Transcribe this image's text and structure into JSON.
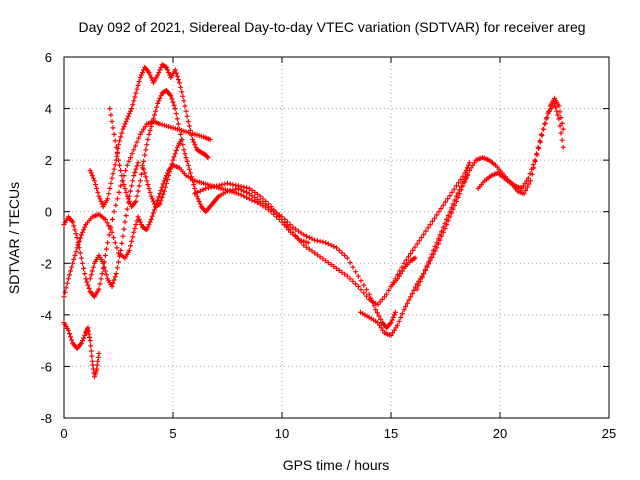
{
  "chart_data": {
    "type": "scatter",
    "title": "Day 092 of 2021, Sidereal Day-to-day VTEC variation (SDTVAR) for receiver areg",
    "xlabel": "GPS time / hours",
    "ylabel": "SDTVAR / TECUs",
    "xlim": [
      0,
      25
    ],
    "ylim": [
      -8,
      6
    ],
    "xticks": [
      "0",
      "5",
      "10",
      "15",
      "20",
      "25"
    ],
    "yticks": [
      "-8",
      "-6",
      "-4",
      "-2",
      "0",
      "2",
      "4",
      "6"
    ],
    "grid": true,
    "marker": "+",
    "series": [
      {
        "name": "SDTVAR",
        "color": "#ff0000",
        "tracks": [
          [
            [
              0.0,
              -0.5
            ],
            [
              0.2,
              -0.2
            ],
            [
              0.4,
              -0.4
            ],
            [
              0.6,
              -1.0
            ],
            [
              0.8,
              -1.8
            ],
            [
              1.0,
              -2.6
            ],
            [
              1.2,
              -3.1
            ],
            [
              1.4,
              -3.3
            ],
            [
              1.6,
              -3.0
            ],
            [
              1.8,
              -2.2
            ],
            [
              2.0,
              -1.2
            ],
            [
              2.3,
              0.0
            ],
            [
              2.6,
              1.0
            ],
            [
              2.9,
              1.8
            ],
            [
              3.2,
              2.4
            ],
            [
              3.5,
              3.0
            ],
            [
              3.8,
              3.4
            ],
            [
              4.1,
              3.5
            ],
            [
              4.4,
              3.4
            ],
            [
              4.8,
              3.3
            ],
            [
              5.2,
              3.2
            ],
            [
              5.6,
              3.1
            ],
            [
              6.0,
              3.0
            ],
            [
              6.4,
              2.9
            ],
            [
              6.7,
              2.8
            ]
          ],
          [
            [
              0.0,
              -3.3
            ],
            [
              0.2,
              -2.6
            ],
            [
              0.4,
              -2.0
            ],
            [
              0.6,
              -1.4
            ],
            [
              0.8,
              -0.9
            ],
            [
              1.0,
              -0.5
            ],
            [
              1.3,
              -0.2
            ],
            [
              1.6,
              -0.1
            ],
            [
              1.9,
              -0.3
            ],
            [
              2.2,
              -0.8
            ],
            [
              2.5,
              -1.6
            ],
            [
              2.8,
              -1.8
            ],
            [
              3.0,
              -1.5
            ],
            [
              3.2,
              -0.8
            ],
            [
              3.4,
              -0.2
            ],
            [
              3.6,
              -0.6
            ],
            [
              3.8,
              -0.7
            ],
            [
              4.0,
              -0.3
            ],
            [
              4.2,
              0.2
            ],
            [
              4.4,
              0.7
            ],
            [
              4.6,
              1.2
            ],
            [
              4.8,
              1.6
            ],
            [
              5.0,
              1.8
            ],
            [
              5.3,
              1.7
            ],
            [
              5.6,
              1.4
            ],
            [
              6.0,
              1.2
            ],
            [
              6.4,
              1.1
            ],
            [
              6.8,
              1.0
            ],
            [
              7.2,
              0.9
            ],
            [
              7.6,
              0.8
            ],
            [
              8.0,
              0.7
            ],
            [
              8.5,
              0.5
            ],
            [
              9.0,
              0.3
            ],
            [
              9.5,
              0.0
            ],
            [
              10.0,
              -0.4
            ],
            [
              10.4,
              -0.8
            ],
            [
              10.8,
              -1.1
            ],
            [
              11.2,
              -1.2
            ]
          ],
          [
            [
              0.0,
              -4.3
            ],
            [
              0.2,
              -4.6
            ],
            [
              0.4,
              -5.1
            ],
            [
              0.6,
              -5.3
            ],
            [
              0.8,
              -5.1
            ],
            [
              1.0,
              -4.7
            ],
            [
              1.1,
              -4.5
            ],
            [
              1.2,
              -5.0
            ],
            [
              1.3,
              -5.8
            ],
            [
              1.4,
              -6.4
            ],
            [
              1.5,
              -6.1
            ],
            [
              1.6,
              -5.5
            ]
          ],
          [
            [
              1.2,
              1.6
            ],
            [
              1.4,
              1.2
            ],
            [
              1.6,
              0.6
            ],
            [
              1.8,
              0.2
            ],
            [
              2.0,
              0.5
            ],
            [
              2.2,
              1.3
            ],
            [
              2.4,
              2.0
            ],
            [
              2.5,
              2.6
            ],
            [
              2.7,
              3.2
            ],
            [
              2.9,
              3.6
            ],
            [
              3.1,
              4.0
            ],
            [
              3.3,
              4.6
            ],
            [
              3.5,
              5.2
            ],
            [
              3.7,
              5.6
            ],
            [
              3.9,
              5.4
            ],
            [
              4.1,
              5.0
            ],
            [
              4.3,
              5.3
            ],
            [
              4.5,
              5.7
            ],
            [
              4.7,
              5.6
            ],
            [
              4.9,
              5.2
            ],
            [
              5.1,
              5.5
            ],
            [
              5.3,
              5.0
            ],
            [
              5.5,
              4.3
            ],
            [
              5.7,
              3.5
            ],
            [
              5.9,
              2.8
            ],
            [
              6.1,
              2.4
            ],
            [
              6.3,
              2.3
            ],
            [
              6.5,
              2.2
            ],
            [
              6.6,
              2.1
            ]
          ],
          [
            [
              2.1,
              4.0
            ],
            [
              2.3,
              3.0
            ],
            [
              2.5,
              2.0
            ],
            [
              2.7,
              1.2
            ],
            [
              2.9,
              0.6
            ],
            [
              3.1,
              0.2
            ],
            [
              3.3,
              0.4
            ],
            [
              3.5,
              1.2
            ],
            [
              3.7,
              2.2
            ],
            [
              3.9,
              3.0
            ],
            [
              4.1,
              3.6
            ],
            [
              4.3,
              4.2
            ],
            [
              4.5,
              4.6
            ],
            [
              4.7,
              4.7
            ],
            [
              4.9,
              4.5
            ],
            [
              5.1,
              4.0
            ],
            [
              5.3,
              3.2
            ],
            [
              5.5,
              2.4
            ],
            [
              5.7,
              1.8
            ],
            [
              5.9,
              1.2
            ],
            [
              6.1,
              0.6
            ],
            [
              6.3,
              0.2
            ],
            [
              6.5,
              0.0
            ],
            [
              6.7,
              0.2
            ],
            [
              6.9,
              0.4
            ],
            [
              7.1,
              0.6
            ],
            [
              7.5,
              0.8
            ],
            [
              8.0,
              0.9
            ],
            [
              8.5,
              0.7
            ],
            [
              9.0,
              0.4
            ],
            [
              9.5,
              0.1
            ],
            [
              10.0,
              -0.2
            ],
            [
              10.5,
              -0.6
            ],
            [
              11.0,
              -0.9
            ],
            [
              11.5,
              -1.1
            ],
            [
              12.0,
              -1.2
            ],
            [
              12.5,
              -1.4
            ],
            [
              13.0,
              -1.8
            ],
            [
              13.5,
              -2.5
            ],
            [
              14.0,
              -3.2
            ],
            [
              14.3,
              -3.8
            ],
            [
              14.6,
              -4.3
            ],
            [
              14.8,
              -4.5
            ],
            [
              15.0,
              -4.3
            ],
            [
              15.2,
              -3.9
            ]
          ],
          [
            [
              3.6,
              1.8
            ],
            [
              3.8,
              1.2
            ],
            [
              4.0,
              0.6
            ],
            [
              4.2,
              0.2
            ],
            [
              4.4,
              0.3
            ],
            [
              4.6,
              0.8
            ],
            [
              4.8,
              1.4
            ],
            [
              5.0,
              2.0
            ],
            [
              5.2,
              2.5
            ],
            [
              5.4,
              2.8
            ]
          ],
          [
            [
              6.0,
              0.7
            ],
            [
              6.5,
              0.9
            ],
            [
              7.0,
              1.0
            ],
            [
              7.5,
              1.1
            ],
            [
              8.0,
              1.0
            ],
            [
              8.5,
              0.9
            ],
            [
              9.0,
              0.6
            ],
            [
              9.5,
              0.2
            ],
            [
              10.0,
              -0.3
            ],
            [
              10.5,
              -0.8
            ],
            [
              11.0,
              -1.3
            ],
            [
              11.5,
              -1.6
            ],
            [
              12.0,
              -1.9
            ],
            [
              12.5,
              -2.2
            ],
            [
              13.0,
              -2.5
            ],
            [
              13.5,
              -2.9
            ],
            [
              14.0,
              -3.4
            ],
            [
              14.4,
              -3.6
            ],
            [
              14.8,
              -3.2
            ],
            [
              15.2,
              -2.6
            ],
            [
              15.6,
              -2.0
            ],
            [
              16.0,
              -1.5
            ],
            [
              16.4,
              -1.0
            ],
            [
              16.8,
              -0.5
            ],
            [
              17.2,
              0.0
            ],
            [
              17.6,
              0.5
            ],
            [
              18.0,
              1.0
            ],
            [
              18.4,
              1.5
            ],
            [
              18.6,
              1.9
            ]
          ],
          [
            [
              13.6,
              -3.9
            ],
            [
              14.0,
              -4.1
            ],
            [
              14.4,
              -4.3
            ],
            [
              14.7,
              -4.7
            ],
            [
              15.0,
              -4.8
            ],
            [
              15.3,
              -4.4
            ],
            [
              15.6,
              -3.8
            ],
            [
              15.9,
              -3.3
            ],
            [
              16.2,
              -2.8
            ],
            [
              16.5,
              -2.4
            ],
            [
              16.8,
              -1.9
            ],
            [
              17.1,
              -1.4
            ],
            [
              17.4,
              -0.8
            ],
            [
              17.7,
              -0.2
            ],
            [
              18.0,
              0.4
            ],
            [
              18.3,
              1.0
            ],
            [
              18.6,
              1.6
            ],
            [
              18.9,
              2.0
            ],
            [
              19.2,
              2.1
            ],
            [
              19.5,
              2.0
            ],
            [
              19.8,
              1.8
            ],
            [
              20.1,
              1.5
            ],
            [
              20.4,
              1.2
            ],
            [
              20.7,
              1.0
            ],
            [
              21.0,
              0.9
            ],
            [
              21.3,
              1.3
            ],
            [
              21.6,
              2.0
            ],
            [
              21.9,
              3.0
            ],
            [
              22.2,
              3.8
            ],
            [
              22.5,
              4.2
            ],
            [
              22.7,
              3.6
            ],
            [
              22.9,
              2.5
            ]
          ],
          [
            [
              15.0,
              -2.9
            ],
            [
              15.3,
              -2.6
            ],
            [
              15.6,
              -2.2
            ],
            [
              15.9,
              -1.9
            ],
            [
              16.1,
              -1.8
            ]
          ],
          [
            [
              16.2,
              -3.0
            ],
            [
              16.5,
              -2.4
            ],
            [
              16.8,
              -1.8
            ],
            [
              17.1,
              -1.2
            ],
            [
              17.4,
              -0.6
            ],
            [
              17.7,
              0.0
            ],
            [
              18.0,
              0.6
            ],
            [
              18.3,
              1.1
            ],
            [
              18.5,
              1.4
            ]
          ],
          [
            [
              19.0,
              0.9
            ],
            [
              19.3,
              1.2
            ],
            [
              19.6,
              1.4
            ],
            [
              19.9,
              1.5
            ],
            [
              20.2,
              1.3
            ],
            [
              20.5,
              1.1
            ],
            [
              20.8,
              0.8
            ],
            [
              21.1,
              0.7
            ],
            [
              21.4,
              1.2
            ],
            [
              21.7,
              2.2
            ],
            [
              22.0,
              3.2
            ],
            [
              22.3,
              4.1
            ],
            [
              22.5,
              4.4
            ],
            [
              22.7,
              4.1
            ],
            [
              22.9,
              3.2
            ]
          ],
          [
            [
              1.2,
              -2.6
            ],
            [
              1.4,
              -2.0
            ],
            [
              1.6,
              -1.7
            ],
            [
              1.8,
              -2.0
            ],
            [
              2.0,
              -2.6
            ],
            [
              2.2,
              -2.9
            ],
            [
              2.4,
              -2.4
            ],
            [
              2.6,
              -1.5
            ],
            [
              2.8,
              -0.4
            ],
            [
              3.0,
              0.6
            ],
            [
              3.2,
              1.4
            ],
            [
              3.4,
              1.9
            ]
          ]
        ]
      }
    ]
  }
}
